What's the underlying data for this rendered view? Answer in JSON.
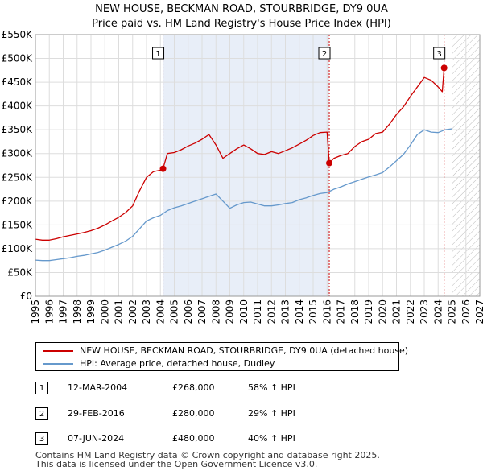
{
  "chart_data": {
    "type": "line",
    "title": "NEW HOUSE, BECKMAN ROAD, STOURBRIDGE, DY9 0UA",
    "subtitle": "Price paid vs. HM Land Registry's House Price Index (HPI)",
    "xlabel": "",
    "ylabel": "",
    "xlim": [
      1995,
      2027
    ],
    "ylim": [
      0,
      550000
    ],
    "x_ticks": [
      "1995",
      "1996",
      "1997",
      "1998",
      "1999",
      "2000",
      "2001",
      "2002",
      "2003",
      "2004",
      "2005",
      "2006",
      "2007",
      "2008",
      "2009",
      "2010",
      "2011",
      "2012",
      "2013",
      "2014",
      "2015",
      "2016",
      "2017",
      "2018",
      "2019",
      "2020",
      "2021",
      "2022",
      "2023",
      "2024",
      "2025",
      "2026",
      "2027"
    ],
    "y_ticks": [
      "£0",
      "£50K",
      "£100K",
      "£150K",
      "£200K",
      "£250K",
      "£300K",
      "£350K",
      "£400K",
      "£450K",
      "£500K",
      "£550K"
    ],
    "grid": true,
    "colors": {
      "property": "#cc0000",
      "hpi": "#6699cc",
      "shade": "#e8eef8",
      "marker_line": "#cc0000"
    },
    "series": [
      {
        "name": "NEW HOUSE, BECKMAN ROAD, STOURBRIDGE, DY9 0UA (detached house)",
        "x": [
          1995.0,
          1995.5,
          1996.0,
          1996.5,
          1997.0,
          1997.5,
          1998.0,
          1998.5,
          1999.0,
          1999.5,
          2000.0,
          2000.5,
          2001.0,
          2001.5,
          2002.0,
          2002.5,
          2003.0,
          2003.5,
          2004.0,
          2004.19,
          2004.5,
          2005.0,
          2005.5,
          2006.0,
          2006.5,
          2007.0,
          2007.5,
          2008.0,
          2008.5,
          2009.0,
          2009.5,
          2010.0,
          2010.5,
          2011.0,
          2011.5,
          2012.0,
          2012.5,
          2013.0,
          2013.5,
          2014.0,
          2014.5,
          2015.0,
          2015.5,
          2016.0,
          2016.16,
          2016.5,
          2017.0,
          2017.5,
          2018.0,
          2018.5,
          2019.0,
          2019.5,
          2020.0,
          2020.5,
          2021.0,
          2021.5,
          2022.0,
          2022.5,
          2023.0,
          2023.5,
          2024.0,
          2024.3,
          2024.43,
          2024.6
        ],
        "y": [
          120000,
          118000,
          118000,
          121000,
          125000,
          128000,
          131000,
          134000,
          138000,
          143000,
          150000,
          158000,
          166000,
          176000,
          190000,
          222000,
          250000,
          262000,
          265000,
          268000,
          300000,
          302000,
          308000,
          316000,
          322000,
          330000,
          340000,
          318000,
          290000,
          300000,
          310000,
          318000,
          310000,
          300000,
          298000,
          304000,
          300000,
          306000,
          312000,
          320000,
          328000,
          338000,
          344000,
          345000,
          280000,
          290000,
          296000,
          300000,
          315000,
          325000,
          330000,
          342000,
          345000,
          362000,
          382000,
          398000,
          420000,
          440000,
          460000,
          454000,
          440000,
          430000,
          480000,
          485000
        ]
      },
      {
        "name": "HPI: Average price, detached house, Dudley",
        "x": [
          1995.0,
          1995.5,
          1996.0,
          1996.5,
          1997.0,
          1997.5,
          1998.0,
          1998.5,
          1999.0,
          1999.5,
          2000.0,
          2000.5,
          2001.0,
          2001.5,
          2002.0,
          2002.5,
          2003.0,
          2003.5,
          2004.0,
          2004.5,
          2005.0,
          2005.5,
          2006.0,
          2006.5,
          2007.0,
          2007.5,
          2008.0,
          2008.5,
          2009.0,
          2009.5,
          2010.0,
          2010.5,
          2011.0,
          2011.5,
          2012.0,
          2012.5,
          2013.0,
          2013.5,
          2014.0,
          2014.5,
          2015.0,
          2015.5,
          2016.0,
          2016.5,
          2017.0,
          2017.5,
          2018.0,
          2018.5,
          2019.0,
          2019.5,
          2020.0,
          2020.5,
          2021.0,
          2021.5,
          2022.0,
          2022.5,
          2023.0,
          2023.5,
          2024.0,
          2024.5,
          2025.0
        ],
        "y": [
          76000,
          75000,
          75000,
          77000,
          79000,
          81000,
          84000,
          86000,
          89000,
          92000,
          97000,
          103000,
          109000,
          116000,
          126000,
          142000,
          158000,
          165000,
          170000,
          180000,
          186000,
          190000,
          195000,
          200000,
          205000,
          210000,
          215000,
          200000,
          185000,
          192000,
          197000,
          198000,
          194000,
          190000,
          190000,
          192000,
          195000,
          197000,
          203000,
          207000,
          212000,
          216000,
          218000,
          225000,
          230000,
          236000,
          241000,
          246000,
          251000,
          255000,
          260000,
          272000,
          285000,
          298000,
          318000,
          340000,
          350000,
          345000,
          344000,
          350000,
          352000
        ]
      }
    ],
    "shaded_range": [
      2004.19,
      2016.16
    ],
    "hatched_from": 2025.0,
    "annotations": [
      {
        "label": "1",
        "x": 2004.19,
        "y": 268000
      },
      {
        "label": "2",
        "x": 2016.16,
        "y": 280000
      },
      {
        "label": "3",
        "x": 2024.43,
        "y": 480000
      }
    ]
  },
  "legend": {
    "property_label": "NEW HOUSE, BECKMAN ROAD, STOURBRIDGE, DY9 0UA (detached house)",
    "hpi_label": "HPI: Average price, detached house, Dudley"
  },
  "transactions": [
    {
      "num": "1",
      "date": "12-MAR-2004",
      "price": "£268,000",
      "hpi": "58% ↑ HPI"
    },
    {
      "num": "2",
      "date": "29-FEB-2016",
      "price": "£280,000",
      "hpi": "29% ↑ HPI"
    },
    {
      "num": "3",
      "date": "07-JUN-2024",
      "price": "£480,000",
      "hpi": "40% ↑ HPI"
    }
  ],
  "footer": {
    "line1": "Contains HM Land Registry data © Crown copyright and database right 2025.",
    "line2": "This data is licensed under the Open Government Licence v3.0."
  }
}
